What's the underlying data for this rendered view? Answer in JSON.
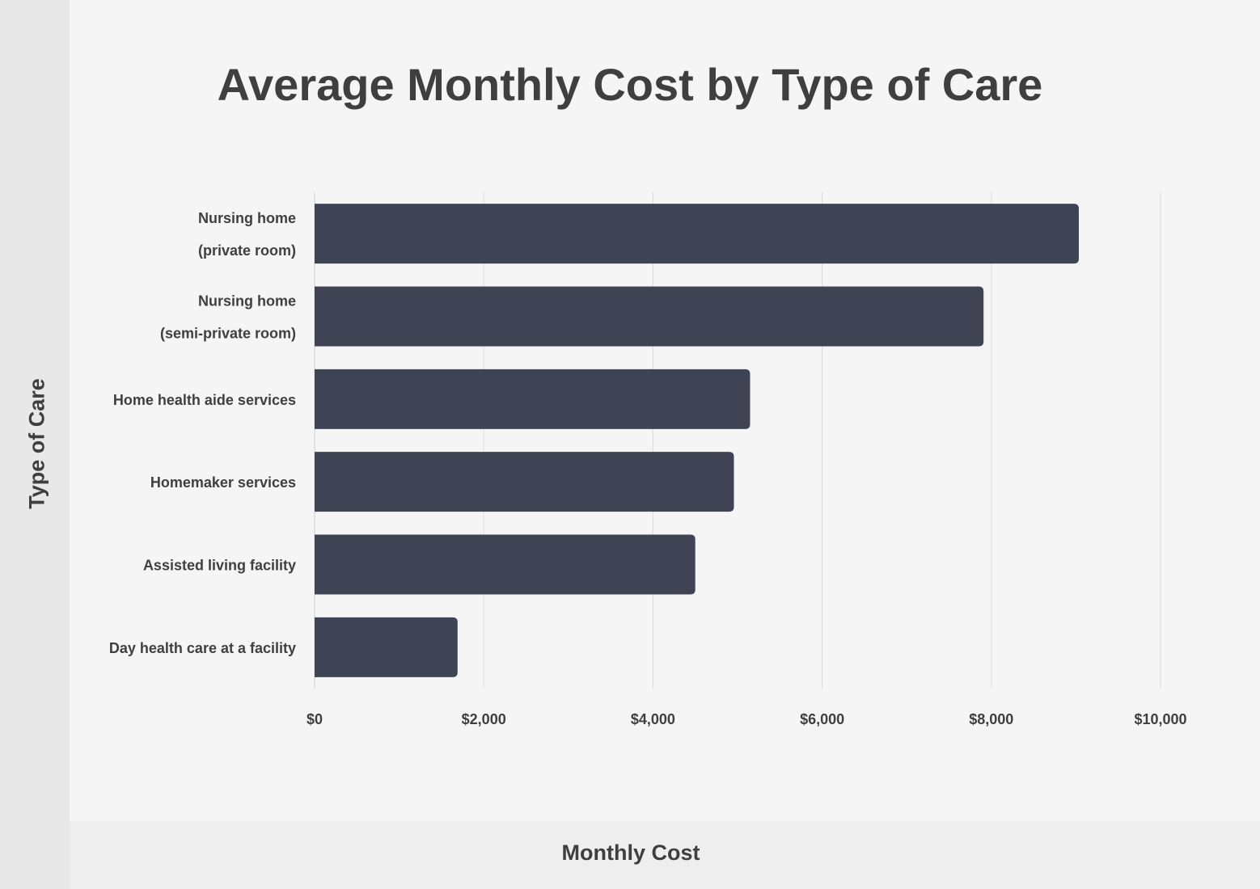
{
  "title": "Average Monthly Cost by Type of Care",
  "chart_data": {
    "type": "bar",
    "orientation": "horizontal",
    "title": "Average Monthly Cost by Type of Care",
    "xlabel": "Monthly Cost",
    "ylabel": "Type of Care",
    "categories": [
      [
        "Nursing home",
        "(private room)"
      ],
      [
        "Nursing home",
        "(semi-private room)"
      ],
      [
        "Home health aide services"
      ],
      [
        "Homemaker services"
      ],
      [
        "Assisted living facility"
      ],
      [
        "Day health care at a facility"
      ]
    ],
    "values": [
      9034,
      7908,
      5148,
      4957,
      4500,
      1690
    ],
    "xlim": [
      0,
      10000
    ],
    "xticks": [
      0,
      2000,
      4000,
      6000,
      8000,
      10000
    ],
    "xtick_labels": [
      "$0",
      "$2,000",
      "$4,000",
      "$6,000",
      "$8,000",
      "$10,000"
    ],
    "grid": "vertical",
    "legend": "none",
    "bar_color": "#3f4454",
    "grid_color": "#dcdcdc"
  }
}
